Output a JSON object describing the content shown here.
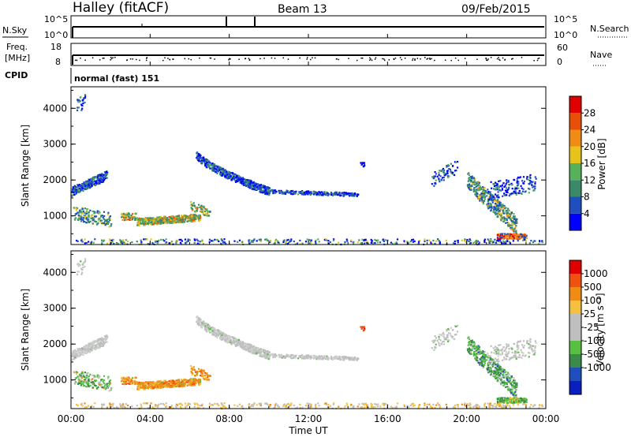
{
  "header": {
    "title": "Halley (fitACF)",
    "beam": "Beam 13",
    "date": "09/Feb/2015"
  },
  "top_panels": {
    "nsky_label": "N.Sky",
    "nsearch_label": "N.Search",
    "nsky_ticks": [
      "10^5",
      "10^0"
    ],
    "freq_label_1": "Freq.",
    "freq_label_2": "[MHz]",
    "freq_ticks": [
      "18",
      "8"
    ],
    "nave_label": "Nave",
    "nave_ticks": [
      "60",
      "0"
    ],
    "cpid_label": "CPID",
    "cpid_value": "normal (fast) 151"
  },
  "colors": {
    "power": [
      "#0000ff",
      "#1f4fbf",
      "#3a8a6a",
      "#57b05a",
      "#e6c21a",
      "#f08c14",
      "#e8500a",
      "#e00000"
    ],
    "velocity": [
      "#e00000",
      "#f05010",
      "#f08c14",
      "#f5c040",
      "#bfbfbf",
      "#bfbfbf",
      "#57c040",
      "#3a8a4a",
      "#1f4fbf",
      "#0a1fc0"
    ]
  },
  "chart_data": [
    {
      "type": "heatmap",
      "name": "power",
      "ylabel": "Slant Range [km]",
      "ylim": [
        200,
        4600
      ],
      "y_ticks": [
        "1000",
        "2000",
        "3000",
        "4000"
      ],
      "x_ticks": [
        "00:00",
        "04:00",
        "08:00",
        "12:00",
        "16:00",
        "20:00",
        "00:00"
      ],
      "colorbar_label": "Power [dB]",
      "colorbar_ticks": [
        "4",
        "8",
        "12",
        "16",
        "20",
        "24",
        "28"
      ]
    },
    {
      "type": "heatmap",
      "name": "velocity",
      "ylabel": "Slant Range [km]",
      "ylim": [
        200,
        4600
      ],
      "y_ticks": [
        "1000",
        "2000",
        "3000",
        "4000"
      ],
      "x_ticks": [
        "00:00",
        "04:00",
        "08:00",
        "12:00",
        "16:00",
        "20:00",
        "00:00"
      ],
      "xlabel": "Time UT",
      "colorbar_label": "Velocity [m s⁻¹]",
      "colorbar_ticks": [
        "1000",
        "500",
        "100",
        "25",
        "-25",
        "-100",
        "-500",
        "-1000"
      ]
    }
  ]
}
